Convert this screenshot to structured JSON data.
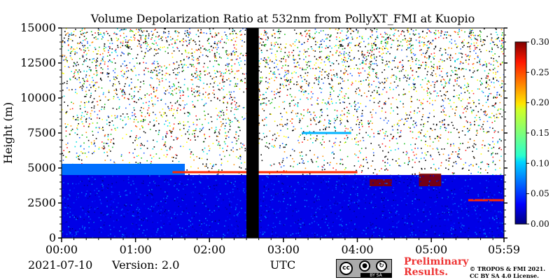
{
  "chart_data": {
    "type": "heatmap",
    "title": "Volume Depolarization Ratio at 532nm from PollyXT_FMI at Kuopio",
    "xlabel": "UTC",
    "ylabel": "Height (m)",
    "xlim": [
      0,
      359
    ],
    "ylim": [
      0,
      15000
    ],
    "x_ticks": [
      {
        "v": 0,
        "label": "00:00"
      },
      {
        "v": 60,
        "label": "01:00"
      },
      {
        "v": 120,
        "label": "02:00"
      },
      {
        "v": 180,
        "label": "03:00"
      },
      {
        "v": 240,
        "label": "04:00"
      },
      {
        "v": 300,
        "label": "05:00"
      },
      {
        "v": 359,
        "label": "05:59"
      }
    ],
    "y_ticks": [
      0,
      2500,
      5000,
      7500,
      10000,
      12500,
      15000
    ],
    "colorbar": {
      "min": 0.0,
      "max": 0.3,
      "ticks": [
        "0.00",
        "0.05",
        "0.10",
        "0.15",
        "0.20",
        "0.25",
        "0.30"
      ],
      "colormap": "jet"
    },
    "data_gap_minutes": [
      150,
      160
    ],
    "features": [
      {
        "desc": "low aerosol layer",
        "x_from": 0,
        "x_to": 359,
        "top_m": 4500,
        "value": 0.03
      },
      {
        "desc": "elevated layer",
        "x_from": 0,
        "x_to": 100,
        "bottom_m": 4500,
        "top_m": 5300,
        "value": 0.07
      },
      {
        "desc": "layer top line",
        "x_from": 90,
        "x_to": 240,
        "height_m": 4700,
        "value": 0.25
      },
      {
        "desc": "thin layer",
        "x_from": 195,
        "x_to": 235,
        "height_m": 7500,
        "value": 0.09
      },
      {
        "desc": "high depol patch",
        "x_from": 250,
        "x_to": 268,
        "bottom_m": 3700,
        "top_m": 4200,
        "value": 0.3
      },
      {
        "desc": "high depol patch",
        "x_from": 290,
        "x_to": 308,
        "bottom_m": 3700,
        "top_m": 4600,
        "value": 0.3
      },
      {
        "desc": "layer top line",
        "x_from": 330,
        "x_to": 359,
        "height_m": 2700,
        "value": 0.25
      }
    ]
  },
  "footer": {
    "date": "2021-07-10",
    "version": "Version: 2.0",
    "preliminary_line1": "Preliminary",
    "preliminary_line2": "Results.",
    "license_line1": "© TROPOS & FMI 2021.",
    "license_line2": "CC BY SA 4.0 License.",
    "cc_badge": "cc",
    "by_badge": "BY   SA"
  },
  "colors": {
    "noise_bg": "#ffffff",
    "gap": "#000000",
    "preliminary": "#ee3333"
  }
}
